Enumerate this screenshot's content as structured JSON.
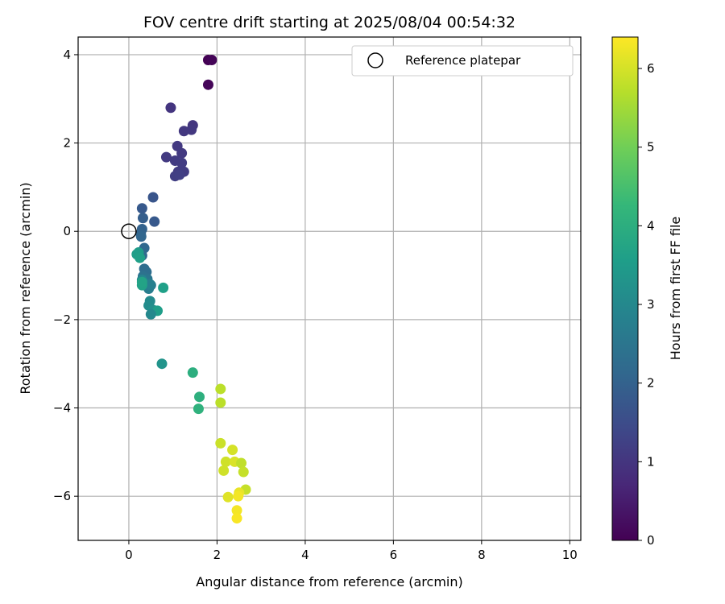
{
  "chart_data": {
    "type": "scatter",
    "title": "FOV centre drift starting at 2025/08/04 00:54:32",
    "xlabel": "Angular distance from reference (arcmin)",
    "ylabel": "Rotation from reference (arcmin)",
    "xlim": [
      -1.15,
      10.25
    ],
    "ylim": [
      -7.0,
      4.4
    ],
    "xticks": [
      0,
      2,
      4,
      6,
      8,
      10
    ],
    "yticks": [
      -6,
      -4,
      -2,
      0,
      2,
      4
    ],
    "grid": true,
    "legend": {
      "position": "top-right",
      "entries": [
        "Reference platepar"
      ]
    },
    "reference_point": {
      "x": 0,
      "y": 0
    },
    "colorbar": {
      "label": "Hours from first FF file",
      "colormap": "viridis",
      "range": [
        0,
        6.4
      ],
      "ticks": [
        0,
        1,
        2,
        3,
        4,
        5,
        6
      ],
      "stops": [
        "#440154",
        "#482878",
        "#3e4989",
        "#31688e",
        "#26828e",
        "#1f9e89",
        "#35b779",
        "#6ece58",
        "#b5de2b",
        "#fde725"
      ]
    },
    "series": [
      {
        "x": [
          1.8,
          1.88,
          1.8,
          0.95,
          1.45,
          1.42,
          1.25,
          1.1,
          1.2,
          0.85,
          1.05,
          1.2,
          1.12,
          1.25,
          1.05,
          1.15,
          0.55,
          0.3,
          0.58,
          0.32,
          0.3,
          0.27,
          0.28,
          0.35,
          0.3,
          0.35,
          0.4,
          0.32,
          0.42,
          0.38,
          0.5,
          0.45,
          0.48,
          0.3,
          0.22,
          0.18,
          0.25,
          0.3,
          0.48,
          0.45,
          0.55,
          0.65,
          0.5,
          0.78,
          0.75,
          0.3,
          1.45,
          1.6,
          1.58,
          2.08,
          2.08,
          2.08,
          2.2,
          2.15,
          2.35,
          2.4,
          2.55,
          2.6,
          2.65,
          2.25,
          2.5,
          2.45,
          2.45,
          2.48
        ],
        "y": [
          3.88,
          3.88,
          3.32,
          2.8,
          2.4,
          2.3,
          2.27,
          1.93,
          1.77,
          1.68,
          1.6,
          1.55,
          1.35,
          1.35,
          1.25,
          1.28,
          0.77,
          0.52,
          0.22,
          0.3,
          0.05,
          -0.05,
          -0.12,
          -0.38,
          -0.55,
          -0.85,
          -0.92,
          -1.02,
          -1.08,
          -1.18,
          -1.22,
          -1.3,
          -1.2,
          -1.1,
          -0.48,
          -0.52,
          -0.6,
          -1.22,
          -1.58,
          -1.68,
          -1.78,
          -1.8,
          -1.88,
          -1.28,
          -3.0,
          -1.15,
          -3.2,
          -3.75,
          -4.02,
          -3.57,
          -3.88,
          -4.8,
          -5.22,
          -5.42,
          -4.95,
          -5.22,
          -5.25,
          -5.45,
          -5.85,
          -6.02,
          -5.92,
          -6.32,
          -6.5,
          -6.0
        ],
        "hours": [
          0.0,
          0.05,
          0.1,
          1.0,
          1.02,
          1.05,
          1.05,
          1.08,
          1.1,
          1.1,
          1.12,
          1.15,
          1.15,
          1.15,
          1.18,
          1.2,
          1.7,
          1.8,
          1.8,
          1.9,
          2.0,
          2.05,
          2.1,
          2.15,
          2.2,
          2.3,
          2.3,
          2.4,
          2.5,
          2.55,
          2.6,
          2.7,
          2.8,
          2.9,
          3.5,
          3.55,
          3.6,
          3.65,
          3.05,
          3.1,
          3.2,
          3.55,
          3.0,
          3.6,
          3.3,
          3.7,
          4.0,
          4.05,
          4.1,
          5.75,
          5.75,
          5.9,
          5.95,
          5.95,
          6.0,
          6.05,
          5.8,
          5.85,
          5.85,
          6.1,
          6.2,
          6.3,
          6.35,
          6.3
        ]
      }
    ]
  }
}
